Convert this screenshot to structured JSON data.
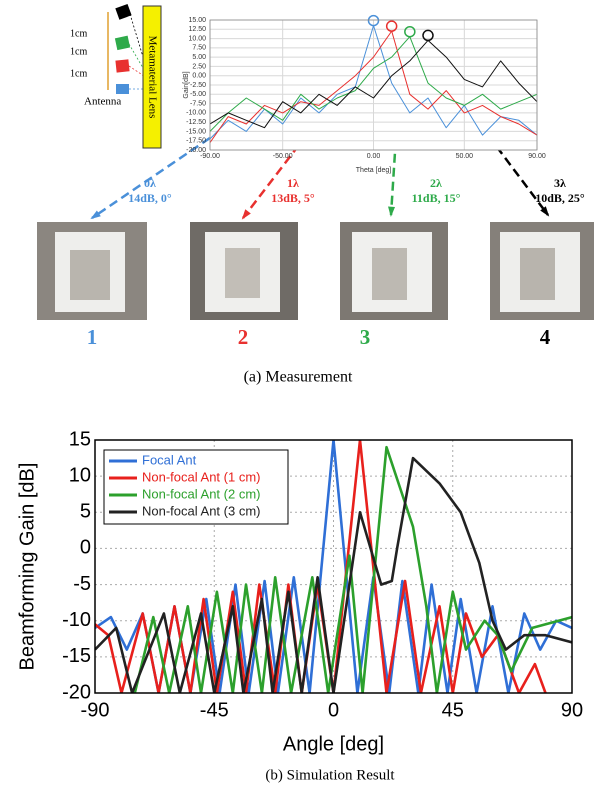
{
  "diagram": {
    "spacing_labels": [
      "1cm",
      "1cm",
      "1cm"
    ],
    "antenna_label": "Antenna",
    "lens_label": "Metamaterial Lens"
  },
  "chart_data": [
    {
      "type": "line",
      "y_label": "Gain[dB]",
      "x_label": "Theta [deg]",
      "x": [
        -90,
        -80,
        -70,
        -60,
        -50,
        -40,
        -30,
        -20,
        -10,
        0,
        10,
        20,
        30,
        40,
        50,
        60,
        70,
        80,
        90
      ],
      "xlim": [
        -90,
        90
      ],
      "ylim": [
        -20,
        15
      ],
      "xticks": [
        {
          "value": -90,
          "label": "-90.00"
        },
        {
          "value": -50,
          "label": "-50.00"
        },
        {
          "value": 0,
          "label": "0.00"
        },
        {
          "value": 50,
          "label": "50.00"
        },
        {
          "value": 90,
          "label": "90.00"
        }
      ],
      "yticks": [
        {
          "value": -20,
          "label": "-20.00"
        },
        {
          "value": -17.5,
          "label": "-17.50"
        },
        {
          "value": -15,
          "label": "-15.00"
        },
        {
          "value": -12.5,
          "label": "-12.50"
        },
        {
          "value": -10,
          "label": "-10.00"
        },
        {
          "value": -7.5,
          "label": "-7.50"
        },
        {
          "value": -5,
          "label": "-5.00"
        },
        {
          "value": -2.5,
          "label": "-2.50"
        },
        {
          "value": 0,
          "label": "0.00"
        },
        {
          "value": 2.5,
          "label": "2.50"
        },
        {
          "value": 5,
          "label": "5.00"
        },
        {
          "value": 7.5,
          "label": "7.50"
        },
        {
          "value": 10,
          "label": "10.00"
        },
        {
          "value": 12.5,
          "label": "12.50"
        },
        {
          "value": 15,
          "label": "15.00"
        }
      ],
      "grid": true,
      "series": [
        {
          "color": "#4a90d9",
          "values": [
            -17,
            -12,
            -15,
            -9,
            -13,
            -6,
            -10,
            -5,
            -3,
            13.5,
            -2,
            -10,
            -6,
            -14,
            -8,
            -16,
            -11,
            -12,
            -16
          ]
        },
        {
          "color": "#e8312f",
          "values": [
            -18,
            -11,
            -13,
            -8,
            -10,
            -7,
            -8,
            -4,
            0,
            5,
            12,
            -5,
            -9,
            -4,
            -10,
            -8,
            -11,
            -13,
            -16
          ]
        },
        {
          "color": "#2eaa4a",
          "values": [
            -15,
            -10,
            -6,
            -9,
            -12,
            -5,
            -9,
            -6,
            -4,
            2,
            5,
            10.5,
            -2,
            -6,
            -8,
            -5,
            -9,
            -7,
            -5
          ]
        },
        {
          "color": "#111111",
          "values": [
            -13,
            -10,
            -12,
            -14,
            -7,
            -10,
            -5,
            -8,
            -3,
            -6,
            0,
            4,
            9.5,
            5,
            -1,
            -3,
            4,
            -2,
            -7
          ]
        }
      ]
    },
    {
      "type": "line",
      "y_label": "Beamforming Gain [dB]",
      "x_label": "Angle [deg]",
      "xlim": [
        -90,
        90
      ],
      "ylim": [
        -20,
        15
      ],
      "xticks": [
        -90,
        -45,
        0,
        45,
        90
      ],
      "yticks": [
        -20,
        -15,
        -10,
        -5,
        0,
        5,
        10,
        15
      ],
      "grid": true,
      "legend": "upper left",
      "series": [
        {
          "name": "Focal Ant",
          "color": "#2f6fd6",
          "x": [
            -90,
            -84,
            -78,
            -72,
            -66,
            -60,
            -54,
            -48,
            -43,
            -37,
            -32,
            -26,
            -21,
            -15,
            -9,
            0,
            9,
            15,
            21,
            26,
            32,
            37,
            43,
            48,
            54,
            60,
            66,
            72,
            78,
            84,
            90
          ],
          "values": [
            -11,
            -9.5,
            -14,
            -9,
            -20,
            -8,
            -20,
            -7,
            -20,
            -5,
            -20,
            -4.5,
            -20,
            -4,
            -20,
            15,
            -20,
            -4,
            -20,
            -4.5,
            -20,
            -5,
            -20,
            -7,
            -20,
            -8,
            -20,
            -9,
            -14,
            -10,
            -11
          ]
        },
        {
          "name": "Non-focal Ant (1 cm)",
          "color": "#e8201c",
          "x": [
            -90,
            -85,
            -80,
            -72,
            -66,
            -60,
            -54,
            -49,
            -44,
            -38,
            -33,
            -28,
            -22,
            -17,
            -12,
            -6,
            0,
            10,
            20,
            27,
            33,
            40,
            45,
            50,
            56,
            62,
            70,
            76,
            80
          ],
          "values": [
            -10.5,
            -12,
            -20,
            -9,
            -20,
            -8,
            -20,
            -7,
            -20,
            -6,
            -20,
            -5,
            -20,
            -5,
            -20,
            -5,
            -20,
            15,
            -20,
            -4.5,
            -20,
            -8,
            -20,
            -9,
            -15,
            -12,
            -20,
            -16,
            -20
          ]
        },
        {
          "name": "Non-focal Ant (2 cm)",
          "color": "#2ca02c",
          "x": [
            -75,
            -68,
            -62,
            -55,
            -50,
            -44,
            -38,
            -33,
            -27,
            -22,
            -16,
            -8,
            -2,
            6,
            11,
            20,
            30,
            35,
            39,
            45,
            50,
            57,
            62,
            67,
            75,
            90
          ],
          "values": [
            -20,
            -9.5,
            -20,
            -8,
            -20,
            -6,
            -20,
            -5,
            -20,
            -4,
            -20,
            -4,
            -20,
            -1,
            -20,
            14,
            3,
            -8,
            -20,
            -6,
            -14,
            -10,
            -12,
            -17,
            -11,
            -9.5
          ]
        },
        {
          "name": "Non-focal Ant (3 cm)",
          "color": "#222222",
          "x": [
            -90,
            -82,
            -76,
            -64,
            -58,
            -50,
            -45,
            -38,
            -34,
            -27,
            -23,
            -17,
            -12,
            -6,
            0,
            10,
            18,
            22,
            24,
            30,
            40,
            48,
            55,
            60,
            65,
            72,
            80,
            90
          ],
          "values": [
            -14,
            -11,
            -20,
            -9,
            -20,
            -9,
            -20,
            -8,
            -20,
            -7,
            -20,
            -6,
            -20,
            -4,
            -20,
            5,
            -5,
            -4.5,
            0,
            12.5,
            9,
            5,
            -2,
            -10,
            -14,
            -12,
            -12,
            -13
          ]
        }
      ]
    }
  ],
  "photos": [
    {
      "step": "0λ",
      "gain": "14dB, 0°",
      "label": "1",
      "color": "#4a90d9"
    },
    {
      "step": "1λ",
      "gain": "13dB, 5°",
      "label": "2",
      "color": "#e8312f"
    },
    {
      "step": "2λ",
      "gain": "11dB, 15°",
      "label": "3",
      "color": "#2eaa4a"
    },
    {
      "step": "3λ",
      "gain": "10dB, 25°",
      "label": "4",
      "color": "#000000"
    }
  ],
  "captions": [
    "(a) Measurement",
    "(b) Simulation Result"
  ]
}
